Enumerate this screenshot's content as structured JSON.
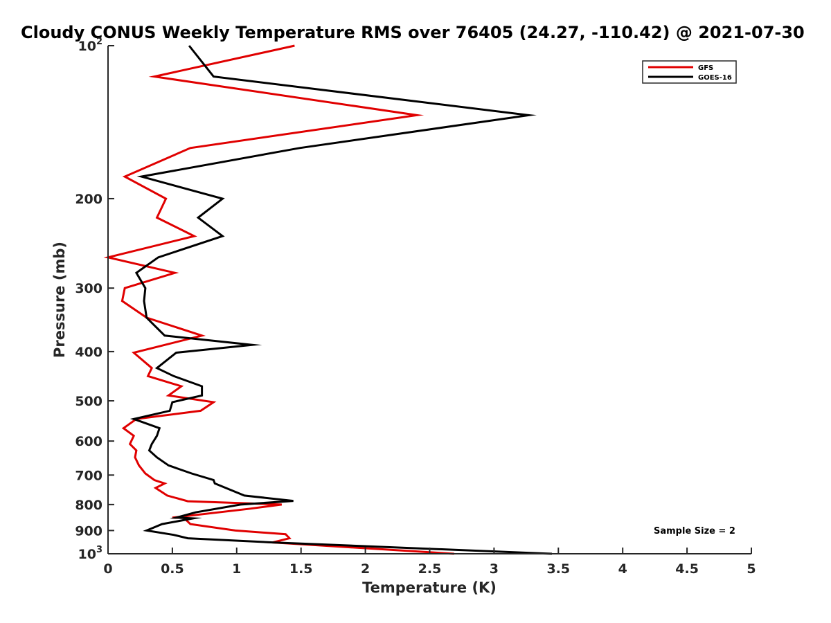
{
  "chart_data": {
    "type": "line",
    "title": "Cloudy CONUS Weekly Temperature RMS over 76405 (24.27, -110.42) @ 2021-07-30",
    "xlabel": "Temperature (K)",
    "ylabel": "Pressure (mb)",
    "xlim": [
      0,
      5
    ],
    "ylim": [
      100,
      1000
    ],
    "yscale": "log",
    "y_reversed": true,
    "x_ticks": [
      0,
      0.5,
      1,
      1.5,
      2,
      2.5,
      3,
      3.5,
      4,
      4.5,
      5
    ],
    "x_tick_labels": [
      "0",
      "0.5",
      "1",
      "1.5",
      "2",
      "2.5",
      "3",
      "3.5",
      "4",
      "4.5",
      "5"
    ],
    "y_ticks": [
      {
        "value": 100,
        "label": "10",
        "sup": "2"
      },
      {
        "value": 200,
        "label": "200",
        "sup": ""
      },
      {
        "value": 300,
        "label": "300",
        "sup": ""
      },
      {
        "value": 400,
        "label": "400",
        "sup": ""
      },
      {
        "value": 500,
        "label": "500",
        "sup": ""
      },
      {
        "value": 600,
        "label": "600",
        "sup": ""
      },
      {
        "value": 700,
        "label": "700",
        "sup": ""
      },
      {
        "value": 800,
        "label": "800",
        "sup": ""
      },
      {
        "value": 900,
        "label": "900",
        "sup": ""
      },
      {
        "value": 1000,
        "label": "10",
        "sup": "3"
      }
    ],
    "legend_position": "top-right",
    "annotation": "Sample Size = 2",
    "series": [
      {
        "name": "GFS",
        "color": "#e00000",
        "points": [
          [
            1.45,
            100
          ],
          [
            0.36,
            115
          ],
          [
            2.4,
            137
          ],
          [
            0.64,
            159
          ],
          [
            0.13,
            181
          ],
          [
            0.45,
            200
          ],
          [
            0.38,
            218
          ],
          [
            0.67,
            237
          ],
          [
            0.0,
            261
          ],
          [
            0.52,
            280
          ],
          [
            0.13,
            300
          ],
          [
            0.11,
            318
          ],
          [
            0.3,
            343
          ],
          [
            0.73,
            372
          ],
          [
            0.2,
            402
          ],
          [
            0.34,
            431
          ],
          [
            0.31,
            447
          ],
          [
            0.57,
            468
          ],
          [
            0.47,
            488
          ],
          [
            0.82,
            503
          ],
          [
            0.72,
            523
          ],
          [
            0.22,
            543
          ],
          [
            0.12,
            566
          ],
          [
            0.2,
            586
          ],
          [
            0.17,
            608
          ],
          [
            0.22,
            626
          ],
          [
            0.21,
            646
          ],
          [
            0.24,
            670
          ],
          [
            0.29,
            695
          ],
          [
            0.36,
            716
          ],
          [
            0.44,
            727
          ],
          [
            0.37,
            742
          ],
          [
            0.46,
            768
          ],
          [
            0.62,
            788
          ],
          [
            1.35,
            800
          ],
          [
            1.09,
            816
          ],
          [
            0.5,
            849
          ],
          [
            0.59,
            850
          ],
          [
            0.64,
            874
          ],
          [
            0.99,
            900
          ],
          [
            1.38,
            915
          ],
          [
            1.41,
            932
          ],
          [
            1.28,
            950
          ],
          [
            2.69,
            1000
          ]
        ]
      },
      {
        "name": "GOES-16",
        "color": "#000000",
        "points": [
          [
            0.63,
            100
          ],
          [
            0.82,
            115
          ],
          [
            3.27,
            137
          ],
          [
            1.49,
            159
          ],
          [
            0.26,
            181
          ],
          [
            0.89,
            200
          ],
          [
            0.7,
            218
          ],
          [
            0.89,
            237
          ],
          [
            0.39,
            261
          ],
          [
            0.22,
            280
          ],
          [
            0.29,
            300
          ],
          [
            0.28,
            318
          ],
          [
            0.3,
            343
          ],
          [
            0.44,
            372
          ],
          [
            1.12,
            388
          ],
          [
            0.53,
            402
          ],
          [
            0.38,
            431
          ],
          [
            0.51,
            447
          ],
          [
            0.73,
            468
          ],
          [
            0.73,
            488
          ],
          [
            0.5,
            503
          ],
          [
            0.48,
            523
          ],
          [
            0.2,
            543
          ],
          [
            0.4,
            566
          ],
          [
            0.38,
            586
          ],
          [
            0.34,
            608
          ],
          [
            0.32,
            626
          ],
          [
            0.38,
            646
          ],
          [
            0.47,
            670
          ],
          [
            0.65,
            695
          ],
          [
            0.82,
            716
          ],
          [
            0.83,
            727
          ],
          [
            1.06,
            768
          ],
          [
            1.44,
            787
          ],
          [
            1.03,
            800
          ],
          [
            0.68,
            829
          ],
          [
            0.53,
            849
          ],
          [
            0.66,
            852
          ],
          [
            0.42,
            874
          ],
          [
            0.3,
            900
          ],
          [
            0.51,
            918
          ],
          [
            0.62,
            932
          ],
          [
            1.28,
            950
          ],
          [
            3.45,
            1000
          ]
        ]
      }
    ]
  }
}
